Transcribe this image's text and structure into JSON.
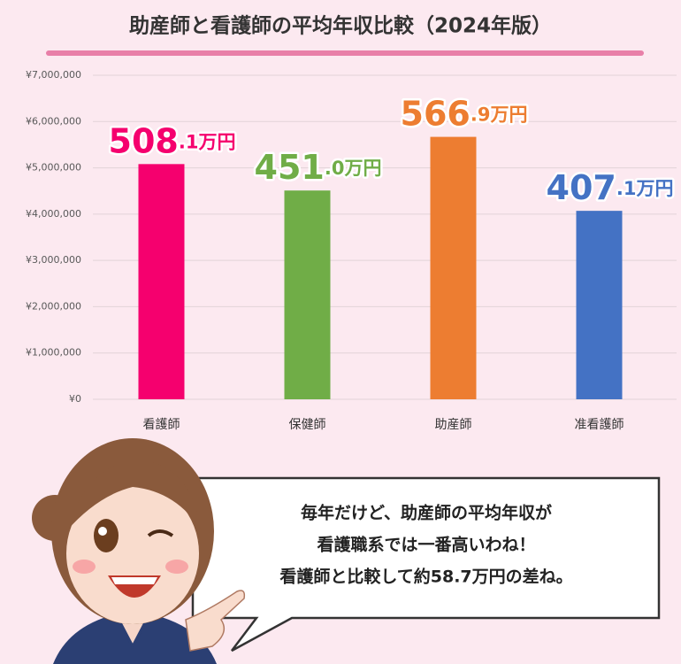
{
  "chart_data": {
    "type": "bar",
    "title": "助産師と看護師の平均年収比較（2024年版）",
    "categories": [
      "看護師",
      "保健師",
      "助産師",
      "准看護師"
    ],
    "values": [
      5081000,
      4510000,
      5669000,
      4071000
    ],
    "value_labels": [
      "508.1万円",
      "451.0万円",
      "566.9万円",
      "407.1万円"
    ],
    "colors": [
      "#f5006e",
      "#70ad47",
      "#ed7d31",
      "#4472c4"
    ],
    "ylim": [
      0,
      7000000
    ],
    "yticks": [
      {
        "value": 0,
        "label": "¥0"
      },
      {
        "value": 1000000,
        "label": "¥1,000,000"
      },
      {
        "value": 2000000,
        "label": "¥2,000,000"
      },
      {
        "value": 3000000,
        "label": "¥3,000,000"
      },
      {
        "value": 4000000,
        "label": "¥4,000,000"
      },
      {
        "value": 5000000,
        "label": "¥5,000,000"
      },
      {
        "value": 6000000,
        "label": "¥6,000,000"
      },
      {
        "value": 7000000,
        "label": "¥7,000,000"
      }
    ],
    "grid": true,
    "annotation": [
      "毎年だけど、助産師の平均年収が",
      "看護職系では一番高いわね！",
      "看護師と比較して約58.7万円の差ね。"
    ]
  }
}
